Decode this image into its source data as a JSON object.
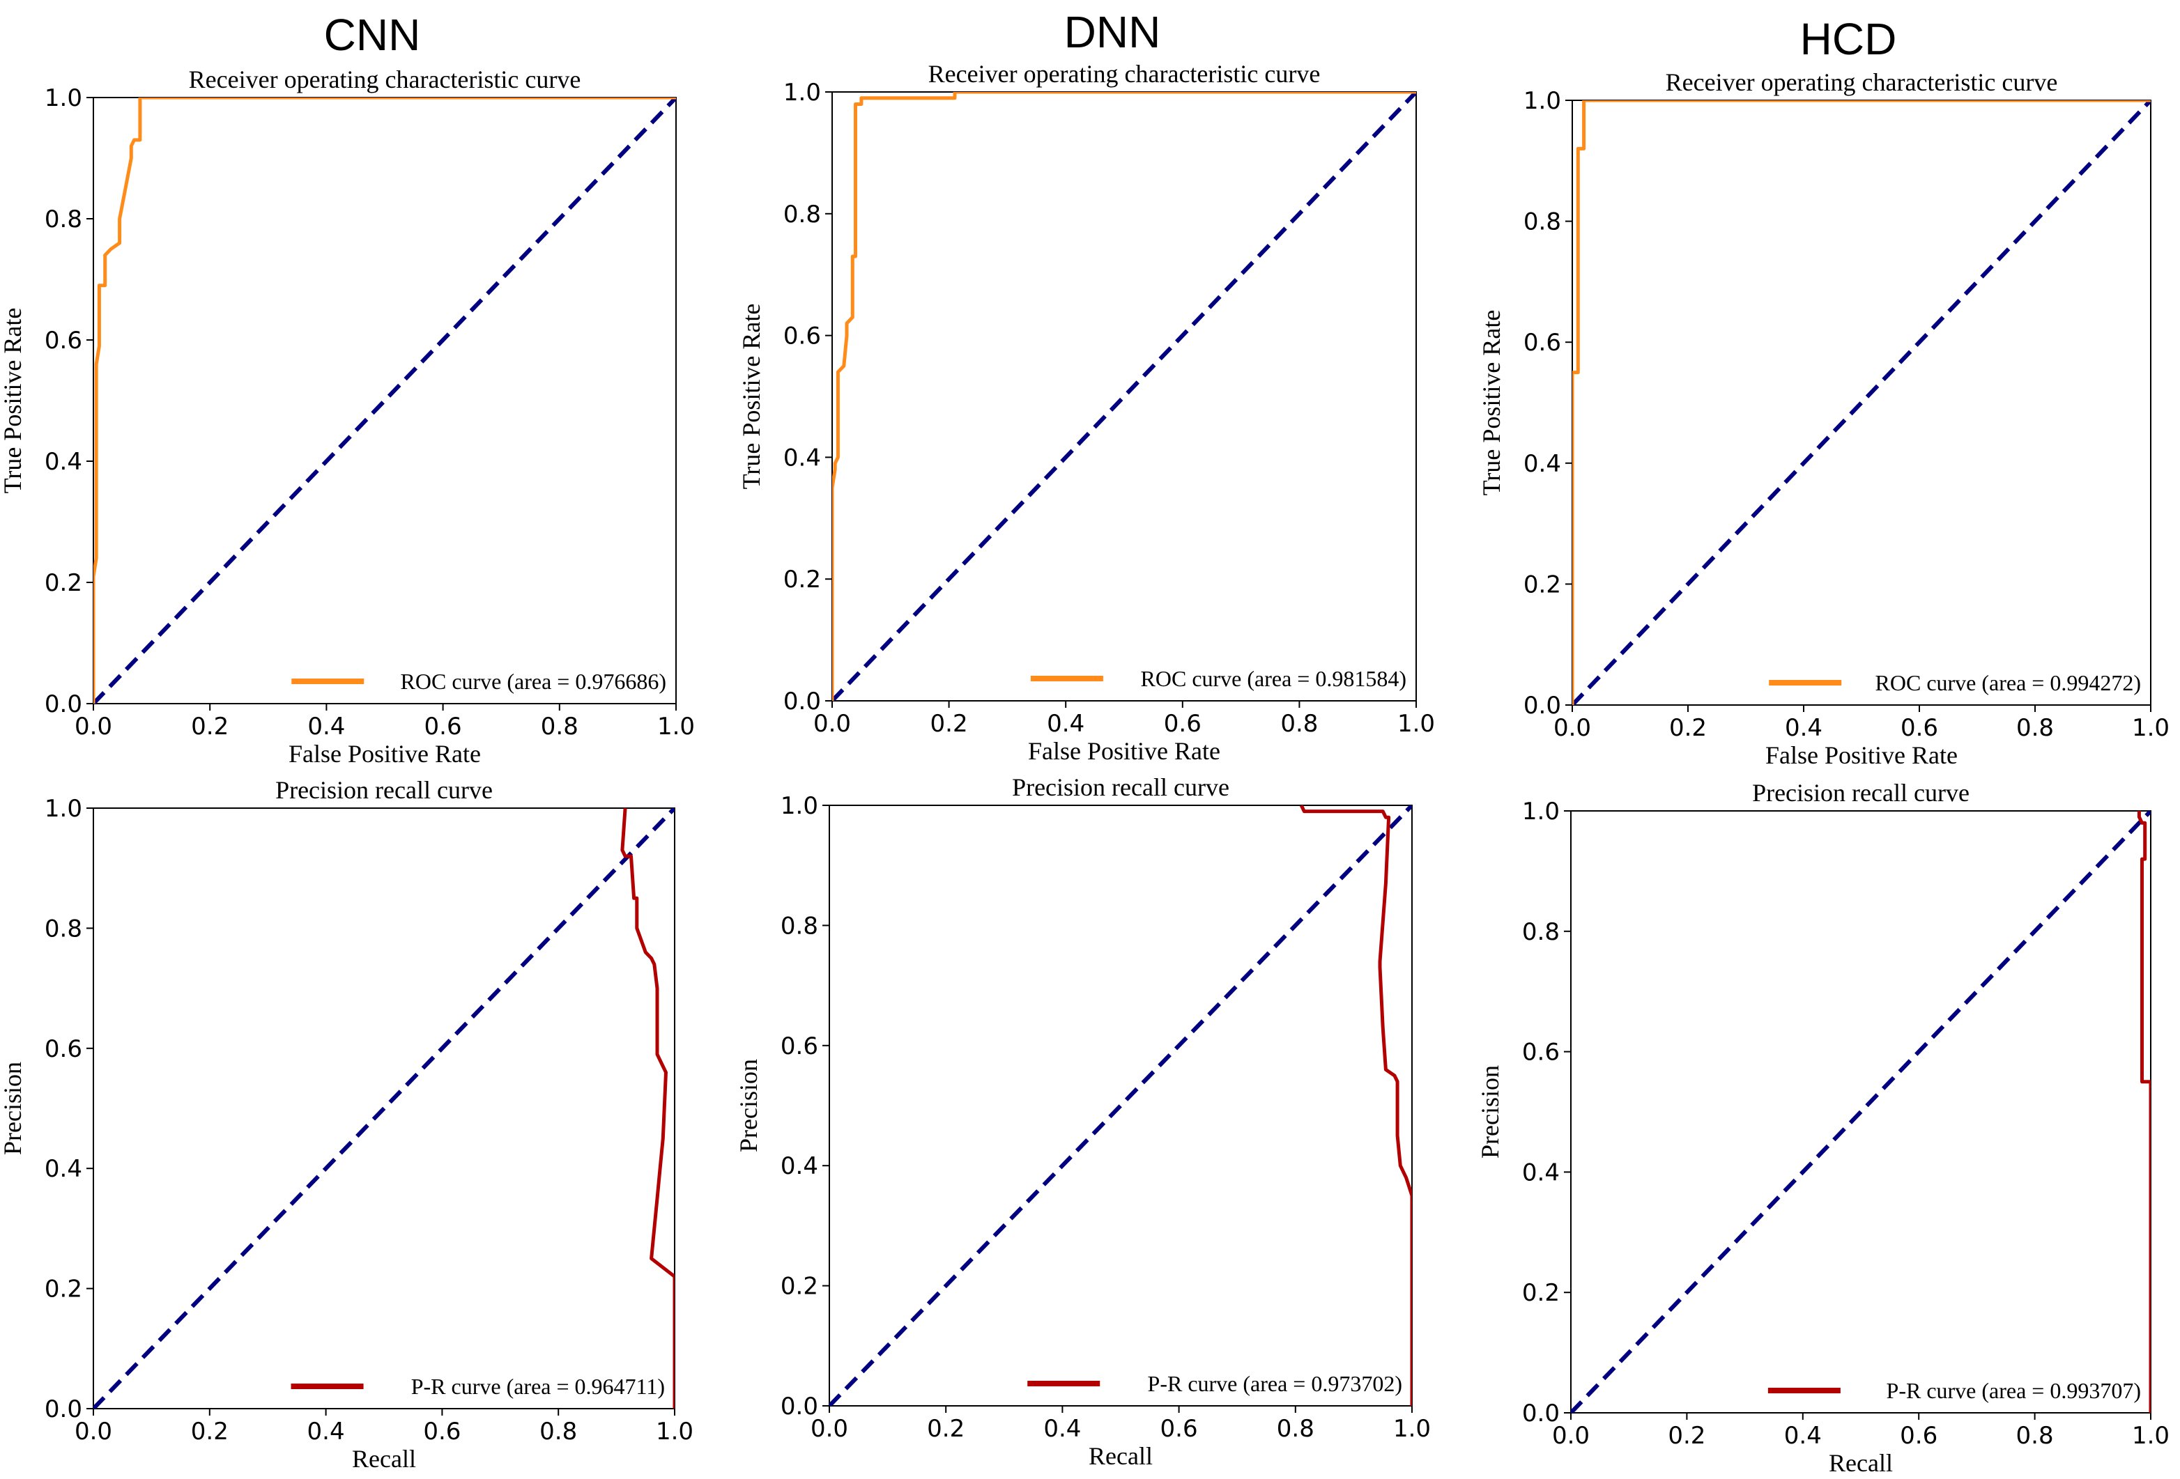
{
  "column_titles": [
    "CNN",
    "DNN",
    "HCD"
  ],
  "colors": {
    "roc": "#ff8c1a",
    "pr": "#b30000",
    "diagonal": "#000080",
    "axes": "#000000"
  },
  "chart_data": [
    {
      "type": "line",
      "column": "CNN",
      "title": "Receiver operating characteristic curve",
      "xlabel": "False Positive Rate",
      "ylabel": "True Positive Rate",
      "xlim": [
        0,
        1
      ],
      "ylim": [
        0,
        1
      ],
      "xticks": [
        "0.0",
        "0.2",
        "0.4",
        "0.6",
        "0.8",
        "1.0"
      ],
      "yticks": [
        "0.0",
        "0.2",
        "0.4",
        "0.6",
        "0.8",
        "1.0"
      ],
      "legend": "ROC curve (area = 0.976686)",
      "legend_position": "lower-right",
      "grid": false,
      "series": [
        {
          "name": "ROC curve (area = 0.976686)",
          "color": "#ff8c1a",
          "x": [
            0,
            0,
            0.005,
            0.005,
            0.01,
            0.01,
            0.02,
            0.02,
            0.03,
            0.03,
            0.045,
            0.045,
            0.055,
            0.055,
            0.065,
            0.065,
            0.07,
            0.07,
            0.08,
            0.08,
            1.0
          ],
          "y": [
            0,
            0.21,
            0.24,
            0.56,
            0.59,
            0.69,
            0.69,
            0.74,
            0.75,
            0.75,
            0.76,
            0.8,
            0.85,
            0.85,
            0.9,
            0.92,
            0.93,
            0.93,
            0.93,
            1.0,
            1.0
          ]
        },
        {
          "name": "",
          "color": "#000080",
          "dashed": true,
          "x": [
            0,
            1
          ],
          "y": [
            0,
            1
          ]
        }
      ]
    },
    {
      "type": "line",
      "column": "DNN",
      "title": "Receiver operating characteristic curve",
      "xlabel": "False Positive Rate",
      "ylabel": "True Positive Rate",
      "xlim": [
        0,
        1
      ],
      "ylim": [
        0,
        1
      ],
      "xticks": [
        "0.0",
        "0.2",
        "0.4",
        "0.6",
        "0.8",
        "1.0"
      ],
      "yticks": [
        "0.0",
        "0.2",
        "0.4",
        "0.6",
        "0.8",
        "1.0"
      ],
      "legend": "ROC curve (area = 0.981584)",
      "legend_position": "lower-right",
      "grid": false,
      "series": [
        {
          "name": "ROC curve (area = 0.981584)",
          "color": "#ff8c1a",
          "x": [
            0,
            0,
            0.005,
            0.005,
            0.01,
            0.01,
            0.02,
            0.02,
            0.025,
            0.025,
            0.035,
            0.035,
            0.04,
            0.04,
            0.05,
            0.05,
            0.21,
            0.21,
            1.0
          ],
          "y": [
            0,
            0.35,
            0.38,
            0.39,
            0.4,
            0.54,
            0.55,
            0.55,
            0.6,
            0.62,
            0.63,
            0.73,
            0.73,
            0.98,
            0.98,
            0.99,
            0.99,
            1.0,
            1.0
          ]
        },
        {
          "name": "",
          "color": "#000080",
          "dashed": true,
          "x": [
            0,
            1
          ],
          "y": [
            0,
            1
          ]
        }
      ]
    },
    {
      "type": "line",
      "column": "HCD",
      "title": "Receiver operating characteristic curve",
      "xlabel": "False Positive Rate",
      "ylabel": "True Positive Rate",
      "xlim": [
        0,
        1
      ],
      "ylim": [
        0,
        1
      ],
      "xticks": [
        "0.0",
        "0.2",
        "0.4",
        "0.6",
        "0.8",
        "1.0"
      ],
      "yticks": [
        "0.0",
        "0.2",
        "0.4",
        "0.6",
        "0.8",
        "1.0"
      ],
      "legend": "ROC curve (area = 0.994272)",
      "legend_position": "lower-right",
      "grid": false,
      "series": [
        {
          "name": "ROC curve (area = 0.994272)",
          "color": "#ff8c1a",
          "x": [
            0,
            0,
            0.01,
            0.01,
            0.015,
            0.015,
            0.02,
            0.02,
            1.0
          ],
          "y": [
            0,
            0.55,
            0.55,
            0.92,
            0.92,
            0.92,
            0.92,
            1.0,
            1.0
          ]
        },
        {
          "name": "",
          "color": "#000080",
          "dashed": true,
          "x": [
            0,
            1
          ],
          "y": [
            0,
            1
          ]
        }
      ]
    },
    {
      "type": "line",
      "column": "CNN",
      "title": "Precision recall curve",
      "xlabel": "Recall",
      "ylabel": "Precision",
      "xlim": [
        0,
        1
      ],
      "ylim": [
        0,
        1
      ],
      "xticks": [
        "0.0",
        "0.2",
        "0.4",
        "0.6",
        "0.8",
        "1.0"
      ],
      "yticks": [
        "0.0",
        "0.2",
        "0.4",
        "0.6",
        "0.8",
        "1.0"
      ],
      "legend": "P-R curve (area = 0.964711)",
      "legend_position": "lower-right",
      "grid": false,
      "series": [
        {
          "name": "P-R curve (area = 0.964711)",
          "color": "#b30000",
          "x": [
            0.915,
            0.91,
            0.915,
            0.925,
            0.93,
            0.935,
            0.935,
            0.95,
            0.96,
            0.965,
            0.97,
            0.97,
            0.98,
            0.985,
            0.98,
            0.975,
            0.97,
            0.965,
            0.96,
            1.0,
            1.0
          ],
          "y": [
            1.0,
            0.93,
            0.92,
            0.92,
            0.85,
            0.85,
            0.8,
            0.76,
            0.75,
            0.74,
            0.7,
            0.59,
            0.57,
            0.56,
            0.45,
            0.4,
            0.35,
            0.3,
            0.25,
            0.22,
            0.0
          ]
        },
        {
          "name": "",
          "color": "#000080",
          "dashed": true,
          "x": [
            0,
            1
          ],
          "y": [
            0,
            1
          ]
        }
      ]
    },
    {
      "type": "line",
      "column": "DNN",
      "title": "Precision recall curve",
      "xlabel": "Recall",
      "ylabel": "Precision",
      "xlim": [
        0,
        1
      ],
      "ylim": [
        0,
        1
      ],
      "xticks": [
        "0.0",
        "0.2",
        "0.4",
        "0.6",
        "0.8",
        "1.0"
      ],
      "yticks": [
        "0.0",
        "0.2",
        "0.4",
        "0.6",
        "0.8",
        "1.0"
      ],
      "legend": "P-R curve (area = 0.973702)",
      "legend_position": "lower-right",
      "grid": false,
      "series": [
        {
          "name": "P-R curve (area = 0.973702)",
          "color": "#b30000",
          "x": [
            0.81,
            0.815,
            0.815,
            0.95,
            0.955,
            0.96,
            0.955,
            0.945,
            0.945,
            0.95,
            0.955,
            0.97,
            0.975,
            0.975,
            0.98,
            0.99,
            1.0,
            1.0
          ],
          "y": [
            1.0,
            0.99,
            0.99,
            0.99,
            0.98,
            0.98,
            0.87,
            0.74,
            0.73,
            0.63,
            0.56,
            0.55,
            0.54,
            0.45,
            0.4,
            0.38,
            0.35,
            0.0
          ]
        },
        {
          "name": "",
          "color": "#000080",
          "dashed": true,
          "x": [
            0,
            1
          ],
          "y": [
            0,
            1
          ]
        }
      ]
    },
    {
      "type": "line",
      "column": "HCD",
      "title": "Precision recall curve",
      "xlabel": "Recall",
      "ylabel": "Precision",
      "xlim": [
        0,
        1
      ],
      "ylim": [
        0,
        1
      ],
      "xticks": [
        "0.0",
        "0.2",
        "0.4",
        "0.6",
        "0.8",
        "1.0"
      ],
      "yticks": [
        "0.0",
        "0.2",
        "0.4",
        "0.6",
        "0.8",
        "1.0"
      ],
      "legend": "P-R curve (area = 0.993707)",
      "legend_position": "lower-right",
      "grid": false,
      "series": [
        {
          "name": "P-R curve (area = 0.993707)",
          "color": "#b30000",
          "x": [
            0.98,
            0.98,
            0.985,
            0.99,
            0.99,
            0.985,
            0.985,
            1.0,
            1.0
          ],
          "y": [
            1.0,
            0.99,
            0.98,
            0.98,
            0.92,
            0.92,
            0.55,
            0.55,
            0.0
          ]
        },
        {
          "name": "",
          "color": "#000080",
          "dashed": true,
          "x": [
            0,
            1
          ],
          "y": [
            0,
            1
          ]
        }
      ]
    }
  ]
}
